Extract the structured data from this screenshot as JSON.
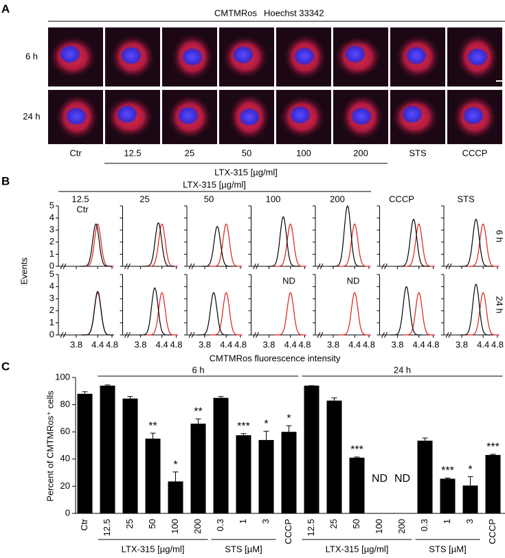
{
  "panel_labels": [
    "A",
    "B",
    "C"
  ],
  "panel_a": {
    "legend": [
      {
        "text": "CMTMRos",
        "color": "#e3191c"
      },
      {
        "text": "Hoechst 33342",
        "color": "#1a1adc"
      }
    ],
    "rows": [
      "6 h",
      "24 h"
    ],
    "columns": [
      "Ctr",
      "12.5",
      "25",
      "50",
      "100",
      "200",
      "STS",
      "CCCP"
    ],
    "group_label": "LTX-315 [µg/ml]"
  },
  "panel_b": {
    "group_label": "LTX-315 [µg/ml]",
    "columns": [
      "12.5",
      "25",
      "50",
      "100",
      "200",
      "CCCP",
      "STS"
    ],
    "legend": "Ctr",
    "y_label": "Events",
    "x_label": "CMTMRos fluorescence intensity",
    "ctr_color": "#e3191c",
    "treated_color": "#000000",
    "xlim": [
      3.3,
      4.8
    ],
    "xticks": [
      3.8,
      4.4,
      4.8
    ],
    "ylim": [
      0,
      5
    ],
    "yticks": [
      0,
      1,
      2,
      3,
      4,
      5
    ],
    "rows": [
      {
        "label": "6 h",
        "panels": [
          {
            "ctr": {
              "peak": 4.4,
              "height": 3.5
            },
            "treated": {
              "peak": 4.35,
              "height": 3.5
            }
          },
          {
            "ctr": {
              "peak": 4.4,
              "height": 3.5
            },
            "treated": {
              "peak": 4.3,
              "height": 3.6
            }
          },
          {
            "ctr": {
              "peak": 4.4,
              "height": 3.5
            },
            "treated": {
              "peak": 4.15,
              "height": 3.3
            }
          },
          {
            "ctr": {
              "peak": 4.4,
              "height": 3.5
            },
            "treated": {
              "peak": 4.2,
              "height": 4.1
            }
          },
          {
            "ctr": {
              "peak": 4.4,
              "height": 3.5
            },
            "treated": {
              "peak": 4.2,
              "height": 5.0
            }
          },
          {
            "ctr": {
              "peak": 4.4,
              "height": 3.5
            },
            "treated": {
              "peak": 4.25,
              "height": 3.9
            }
          },
          {
            "ctr": {
              "peak": 4.4,
              "height": 3.5
            },
            "treated": {
              "peak": 4.2,
              "height": 3.9
            }
          }
        ]
      },
      {
        "label": "24 h",
        "panels": [
          {
            "ctr": {
              "peak": 4.4,
              "height": 3.5
            },
            "treated": {
              "peak": 4.4,
              "height": 3.6
            }
          },
          {
            "ctr": {
              "peak": 4.4,
              "height": 3.5
            },
            "treated": {
              "peak": 4.2,
              "height": 3.9
            }
          },
          {
            "ctr": {
              "peak": 4.4,
              "height": 3.5
            },
            "treated": {
              "peak": 4.05,
              "height": 3.5
            }
          },
          {
            "ctr": {
              "peak": 4.4,
              "height": 3.5
            },
            "note": "ND"
          },
          {
            "ctr": {
              "peak": 4.4,
              "height": 3.5
            },
            "note": "ND"
          },
          {
            "ctr": {
              "peak": 4.4,
              "height": 3.5
            },
            "treated": {
              "peak": 4.05,
              "height": 4.0
            }
          },
          {
            "ctr": {
              "peak": 4.4,
              "height": 3.5
            },
            "treated": {
              "peak": 4.2,
              "height": 4.2
            }
          }
        ]
      }
    ]
  },
  "chart_data": {
    "type": "bar",
    "y_label": "Percent of CMTMRos⁺ cells",
    "categories": [
      "Ctr",
      "12.5",
      "25",
      "50",
      "100",
      "200",
      "0.3",
      "1",
      "3",
      "CCCP",
      "12.5",
      "25",
      "50",
      "100",
      "200",
      "0.3",
      "1",
      "3",
      "CCCP"
    ],
    "values": [
      88,
      94,
      84.5,
      55,
      23.5,
      66,
      85,
      57.5,
      54,
      60,
      94,
      83,
      41,
      null,
      null,
      53.5,
      25.5,
      20.5,
      43
    ],
    "errors": [
      1.5,
      0.5,
      1.5,
      4,
      7,
      3.5,
      1,
      1.2,
      6.5,
      4.5,
      0,
      2,
      0.5,
      null,
      null,
      2,
      0.5,
      6.5,
      0.5
    ],
    "annotations": [
      null,
      null,
      null,
      "**",
      "*",
      "**",
      null,
      "***",
      "*",
      "*",
      null,
      null,
      "***",
      "ND",
      "ND",
      null,
      "***",
      "*",
      "***"
    ],
    "top_groups": [
      "6 h",
      "24 h"
    ],
    "bottom_groups": [
      "LTX-315 [µg/ml]",
      "STS [µM]",
      "LTX-315 [µg/ml]",
      "STS [µM]"
    ],
    "color": "#000000",
    "ylim": [
      0,
      100
    ],
    "yticks": [
      0,
      20,
      40,
      60,
      80,
      100
    ]
  }
}
